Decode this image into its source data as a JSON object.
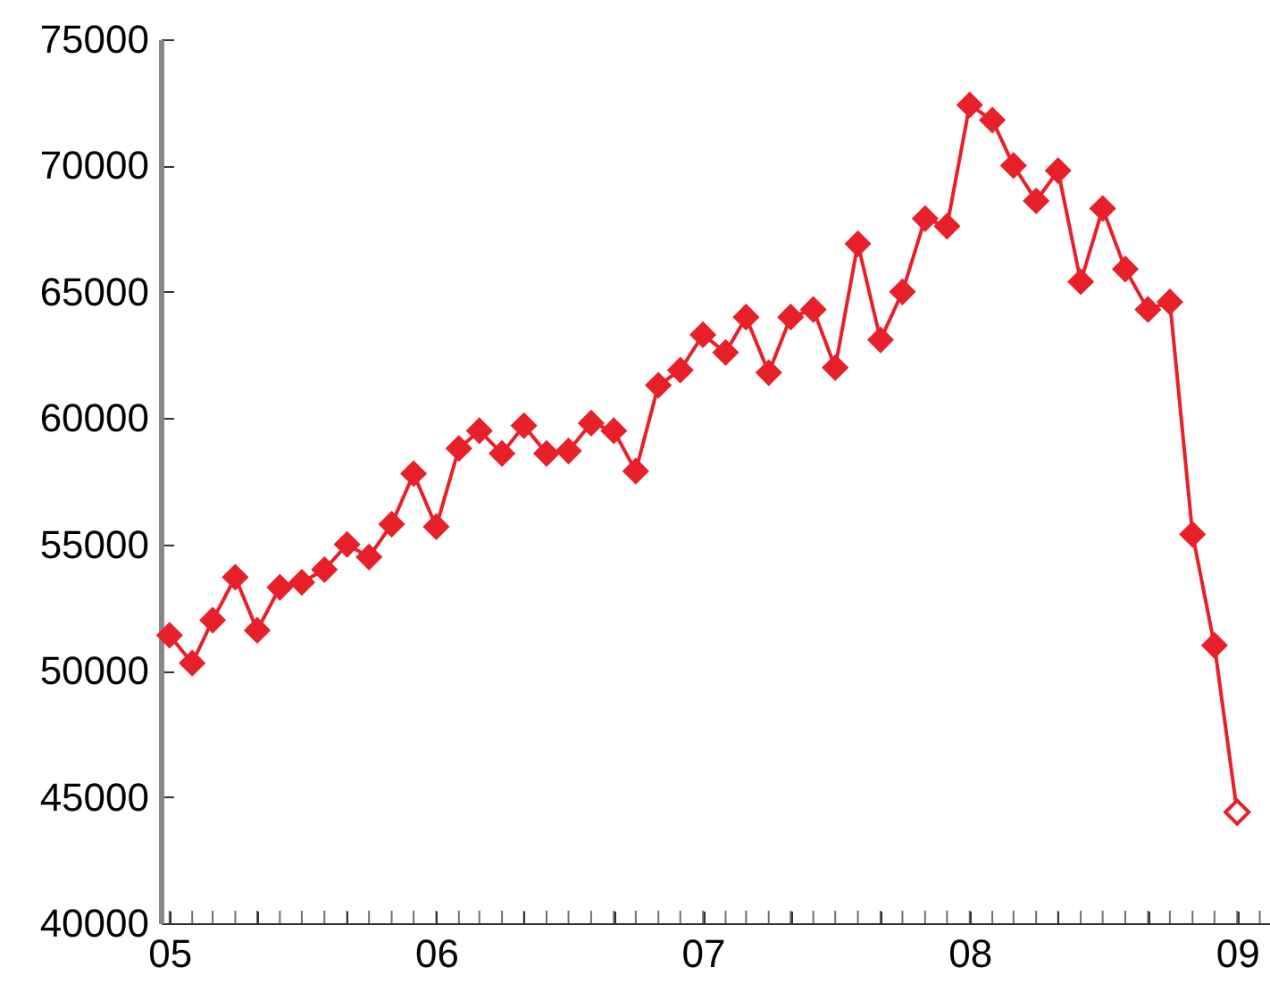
{
  "chart_data": {
    "type": "line",
    "x": [
      "2005-01",
      "2005-02",
      "2005-03",
      "2005-04",
      "2005-05",
      "2005-06",
      "2005-07",
      "2005-08",
      "2005-09",
      "2005-10",
      "2005-11",
      "2005-12",
      "2006-01",
      "2006-02",
      "2006-03",
      "2006-04",
      "2006-05",
      "2006-06",
      "2006-07",
      "2006-08",
      "2006-09",
      "2006-10",
      "2006-11",
      "2006-12",
      "2007-01",
      "2007-02",
      "2007-03",
      "2007-04",
      "2007-05",
      "2007-06",
      "2007-07",
      "2007-08",
      "2007-09",
      "2007-10",
      "2007-11",
      "2007-12",
      "2008-01",
      "2008-02",
      "2008-03",
      "2008-04",
      "2008-05",
      "2008-06",
      "2008-07",
      "2008-08",
      "2008-09",
      "2008-10",
      "2008-11",
      "2008-12",
      "2009-01"
    ],
    "series": [
      {
        "color": "#e8202a",
        "marker": "diamond",
        "values": [
          51400,
          50300,
          52000,
          53700,
          51600,
          53300,
          53500,
          54000,
          55000,
          54500,
          55800,
          57800,
          55700,
          58800,
          59500,
          58600,
          59700,
          58600,
          58700,
          59800,
          59500,
          57900,
          61300,
          61900,
          63300,
          62600,
          64000,
          61800,
          64000,
          64300,
          62000,
          66900,
          63100,
          65000,
          67900,
          67600,
          72400,
          71800,
          70000,
          68600,
          69800,
          65400,
          68300,
          65900,
          64300,
          64600,
          55400,
          51000,
          44400
        ]
      },
      {
        "type": "scatter",
        "color": "#e8202a",
        "marker": "diamond",
        "x": [
          "2009-01"
        ],
        "values": [
          44400
        ]
      }
    ],
    "line_style": "solid",
    "xlim": [
      "2004-12-20",
      "2009-02-15"
    ],
    "xticks": [
      {
        "value": "2005-01",
        "label": "05"
      },
      {
        "value": "2005-02",
        "label": null
      },
      {
        "value": "2005-03",
        "label": null
      },
      {
        "value": "2005-04",
        "label": null
      },
      {
        "value": "2005-05",
        "label": null
      },
      {
        "value": "2005-06",
        "label": null
      },
      {
        "value": "2005-07",
        "label": null
      },
      {
        "value": "2005-08",
        "label": null
      },
      {
        "value": "2005-09",
        "label": null
      },
      {
        "value": "2005-10",
        "label": null
      },
      {
        "value": "2005-11",
        "label": null
      },
      {
        "value": "2005-12",
        "label": null
      },
      {
        "value": "2006-01",
        "label": "06"
      },
      {
        "value": "2006-02",
        "label": null
      },
      {
        "value": "2006-03",
        "label": null
      },
      {
        "value": "2006-04",
        "label": null
      },
      {
        "value": "2006-05",
        "label": null
      },
      {
        "value": "2006-06",
        "label": null
      },
      {
        "value": "2006-07",
        "label": null
      },
      {
        "value": "2006-08",
        "label": null
      },
      {
        "value": "2006-09",
        "label": null
      },
      {
        "value": "2006-10",
        "label": null
      },
      {
        "value": "2006-11",
        "label": null
      },
      {
        "value": "2006-12",
        "label": null
      },
      {
        "value": "2007-01",
        "label": "07"
      },
      {
        "value": "2007-02",
        "label": null
      },
      {
        "value": "2007-03",
        "label": null
      },
      {
        "value": "2007-04",
        "label": null
      },
      {
        "value": "2007-05",
        "label": null
      },
      {
        "value": "2007-06",
        "label": null
      },
      {
        "value": "2007-07",
        "label": null
      },
      {
        "value": "2007-08",
        "label": null
      },
      {
        "value": "2007-09",
        "label": null
      },
      {
        "value": "2007-10",
        "label": null
      },
      {
        "value": "2007-11",
        "label": null
      },
      {
        "value": "2007-12",
        "label": null
      },
      {
        "value": "2008-01",
        "label": "08"
      },
      {
        "value": "2008-02",
        "label": null
      },
      {
        "value": "2008-03",
        "label": null
      },
      {
        "value": "2008-04",
        "label": null
      },
      {
        "value": "2008-05",
        "label": null
      },
      {
        "value": "2008-06",
        "label": null
      },
      {
        "value": "2008-07",
        "label": null
      },
      {
        "value": "2008-08",
        "label": null
      },
      {
        "value": "2008-09",
        "label": null
      },
      {
        "value": "2008-10",
        "label": null
      },
      {
        "value": "2008-11",
        "label": null
      },
      {
        "value": "2008-12",
        "label": null
      },
      {
        "value": "2009-01",
        "label": "09"
      },
      {
        "value": "2009-02",
        "label": null
      }
    ],
    "ylim": [
      40000,
      75000
    ],
    "yticks": [
      40000,
      45000,
      50000,
      55000,
      60000,
      65000,
      70000,
      75000
    ],
    "grid": false
  }
}
